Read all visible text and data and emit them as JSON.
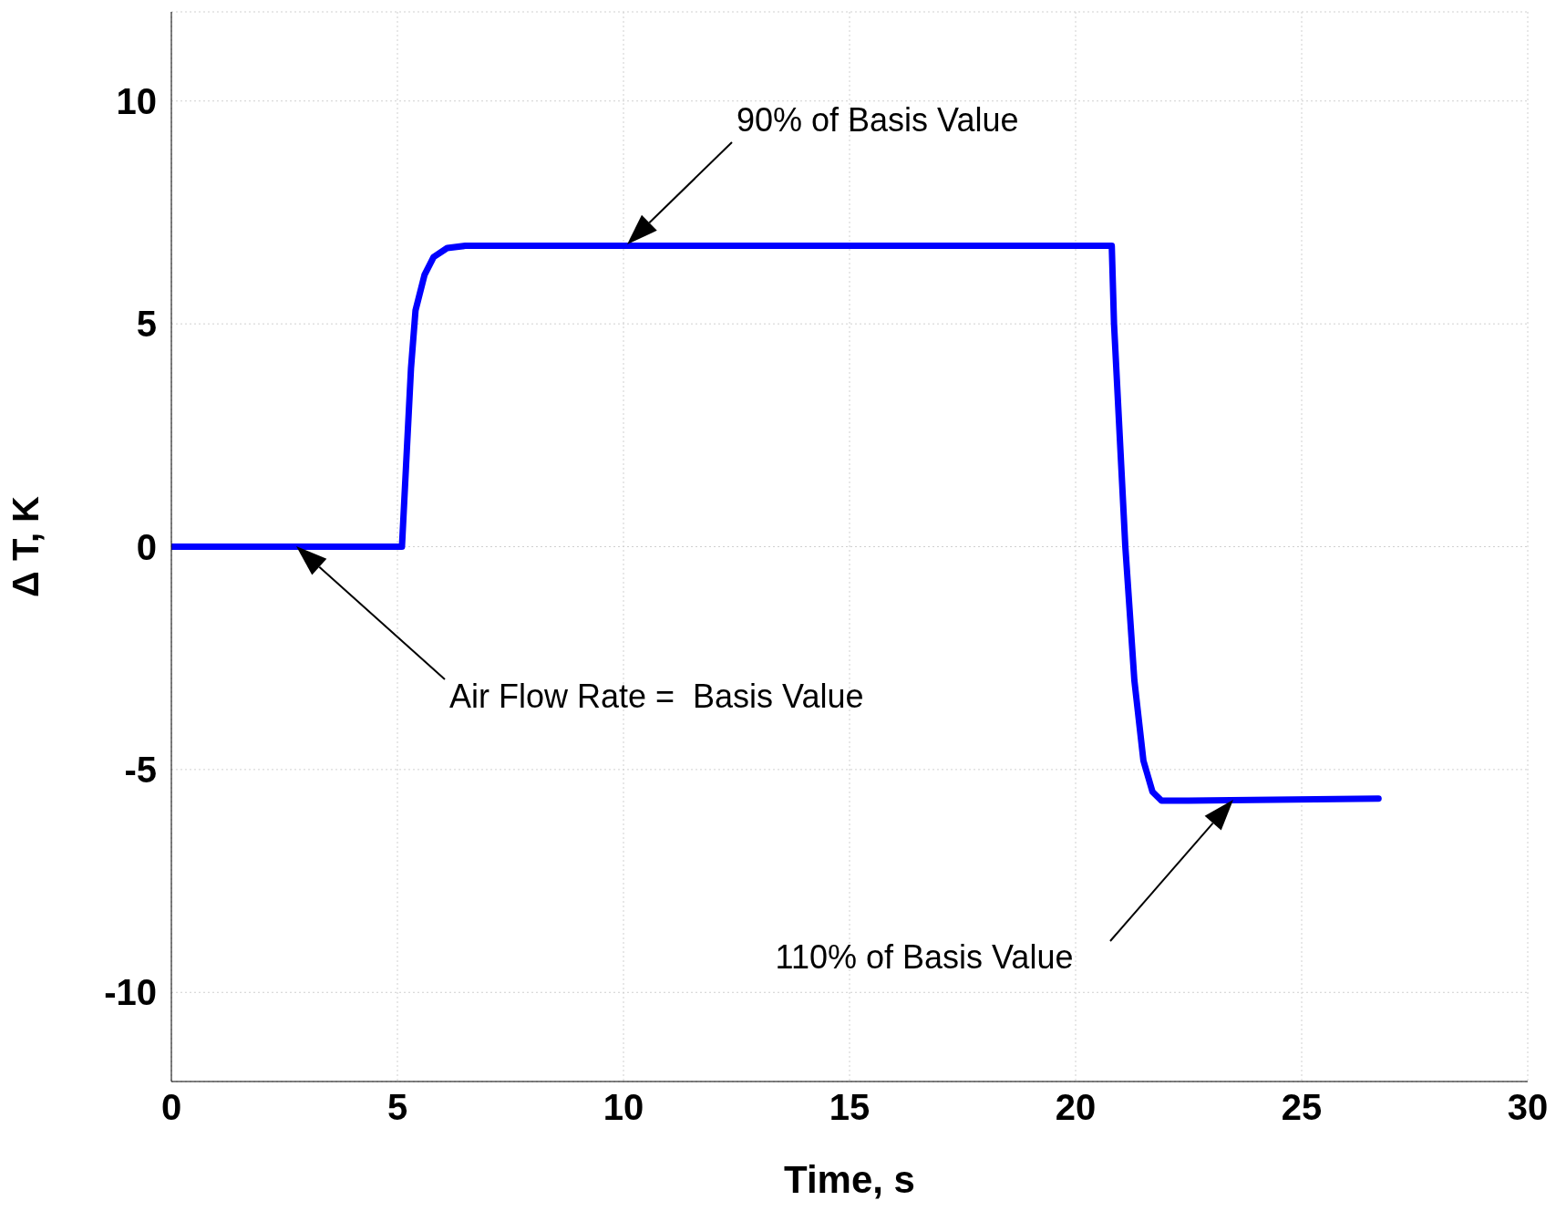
{
  "chart_data": {
    "type": "line",
    "xlabel": "Time, s",
    "ylabel": "Δ T, K",
    "x": [
      0,
      5.1,
      5.2,
      5.3,
      5.4,
      5.6,
      5.8,
      6.1,
      6.5,
      20.8,
      20.85,
      21,
      21.1,
      21.3,
      21.5,
      21.7,
      21.9,
      22.5,
      26.7
    ],
    "series": [
      {
        "color": "#0000ff",
        "values": [
          0,
          0,
          2,
          4,
          5.3,
          6.1,
          6.5,
          6.7,
          6.75,
          6.75,
          5,
          2,
          0,
          -3,
          -4.8,
          -5.5,
          -5.7,
          -5.7,
          -5.65
        ]
      }
    ],
    "xlim": [
      0,
      30
    ],
    "xticks": [
      0,
      5,
      10,
      15,
      20,
      25,
      30
    ],
    "ylim": [
      -12,
      12
    ],
    "yticks": [
      -10,
      -5,
      0,
      5,
      10
    ],
    "grid": true,
    "marker": "none",
    "line_style": "solid",
    "annotations": [
      "90% of Basis Value",
      "Air Flow Rate =  Basis Value",
      "110% of Basis Value"
    ]
  }
}
